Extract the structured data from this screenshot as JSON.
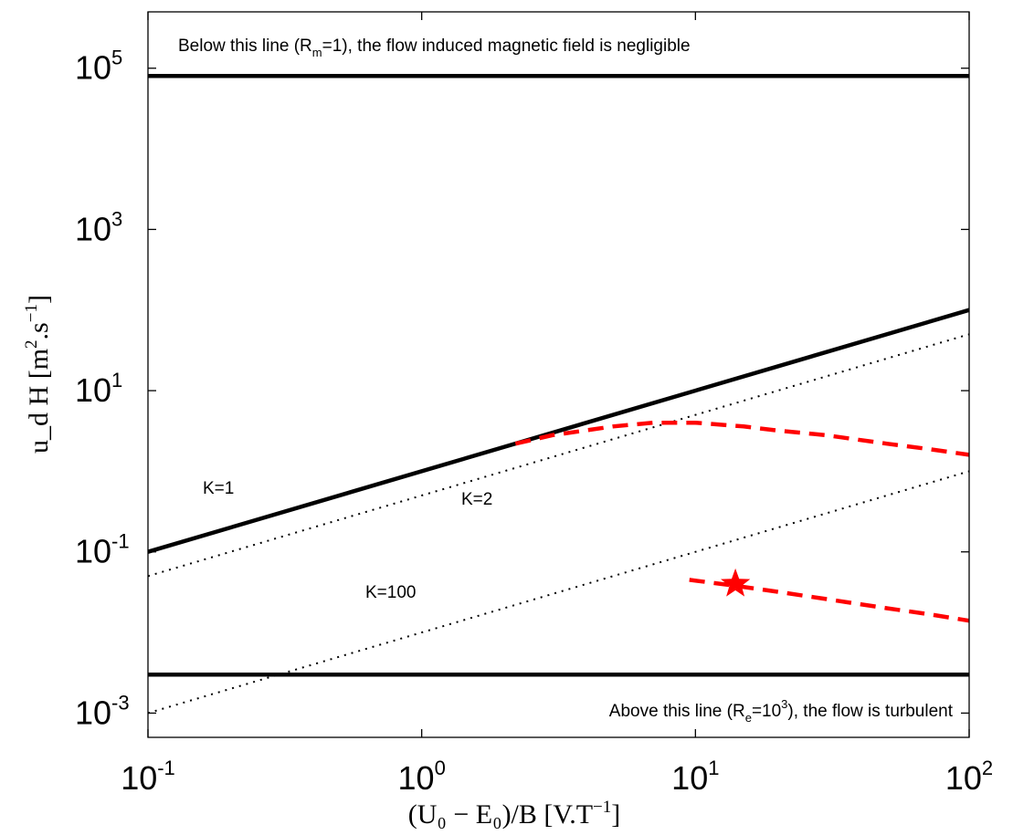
{
  "chart_data": {
    "type": "line",
    "x_scale": "log",
    "y_scale": "log",
    "xlim": [
      0.1,
      100
    ],
    "ylim": [
      0.0005,
      500000
    ],
    "x_ticks": [
      {
        "value": 0.1,
        "base": "10",
        "exp": "-1"
      },
      {
        "value": 1,
        "base": "10",
        "exp": "0"
      },
      {
        "value": 10,
        "base": "10",
        "exp": "1"
      },
      {
        "value": 100,
        "base": "10",
        "exp": "2"
      }
    ],
    "y_ticks": [
      {
        "value": 0.001,
        "base": "10",
        "exp": "-3"
      },
      {
        "value": 0.1,
        "base": "10",
        "exp": "-1"
      },
      {
        "value": 10,
        "base": "10",
        "exp": "1"
      },
      {
        "value": 1000,
        "base": "10",
        "exp": "3"
      },
      {
        "value": 100000,
        "base": "10",
        "exp": "5"
      }
    ],
    "xlabel": {
      "text": "(U₀ − E₀)/B  [V.T",
      "sup": "−1",
      "close": "]"
    },
    "ylabel": {
      "text": "u_d H  [m",
      "sup1": "2",
      "mid": ".s",
      "sup2": "−1",
      "close": "]"
    },
    "series": [
      {
        "style": "solid",
        "color": "#000000",
        "x": [
          0.1,
          100
        ],
        "y": [
          80000,
          80000
        ]
      },
      {
        "style": "solid",
        "color": "#000000",
        "x": [
          0.1,
          100
        ],
        "y": [
          0.003,
          0.003
        ]
      },
      {
        "style": "solid",
        "color": "#000000",
        "x": [
          0.1,
          100
        ],
        "y": [
          0.1,
          100
        ]
      },
      {
        "style": "dotted",
        "color": "#000000",
        "x": [
          0.1,
          100
        ],
        "y": [
          0.05,
          50
        ]
      },
      {
        "style": "dotted",
        "color": "#000000",
        "x": [
          0.1,
          100
        ],
        "y": [
          0.001,
          1
        ]
      },
      {
        "style": "dashed",
        "color": "#ff0000",
        "x": [
          2.2,
          3,
          5,
          7,
          10,
          15,
          20,
          30,
          50,
          70,
          100
        ],
        "y": [
          2.2,
          2.8,
          3.6,
          4.0,
          4.0,
          3.6,
          3.2,
          2.8,
          2.2,
          1.9,
          1.6
        ]
      },
      {
        "style": "dashed",
        "color": "#ff0000",
        "x": [
          9.5,
          14,
          20,
          30,
          50,
          70,
          100
        ],
        "y": [
          0.045,
          0.038,
          0.032,
          0.026,
          0.02,
          0.017,
          0.014
        ]
      }
    ],
    "marker": {
      "shape": "star",
      "color": "#ff0000",
      "x": 14,
      "y": 0.04
    },
    "annotations": {
      "top": {
        "pre": "Below this line (R",
        "sub": "m",
        "post": "=1), the flow induced magnetic field is negligible"
      },
      "bottom": {
        "pre": "Above this line (R",
        "sub": "e",
        "mid": "=10",
        "sup": "3",
        "post": "), the flow is turbulent"
      },
      "k1": "K=1",
      "k2": "K=2",
      "k100": "K=100"
    }
  }
}
